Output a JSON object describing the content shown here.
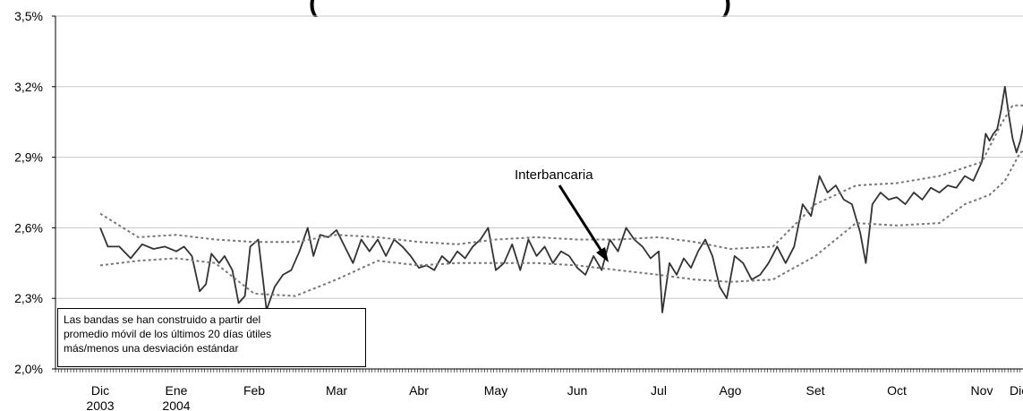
{
  "chart_data": {
    "type": "line",
    "title_fragment": "(",
    "title_fragment_end": ")",
    "y_ticks": [
      "3,5%",
      "3,2%",
      "2,9%",
      "2,6%",
      "2,3%",
      "2,0%"
    ],
    "ylim": [
      2.0,
      3.5
    ],
    "grid": true,
    "x_ticks": [
      {
        "label": "Dic",
        "sub": "2003"
      },
      {
        "label": "Ene",
        "sub": "2004"
      },
      {
        "label": "Feb",
        "sub": ""
      },
      {
        "label": "Mar",
        "sub": ""
      },
      {
        "label": "Abr",
        "sub": ""
      },
      {
        "label": "May",
        "sub": ""
      },
      {
        "label": "Jun",
        "sub": ""
      },
      {
        "label": "Jul",
        "sub": ""
      },
      {
        "label": "Ago",
        "sub": ""
      },
      {
        "label": "Set",
        "sub": ""
      },
      {
        "label": "Oct",
        "sub": ""
      },
      {
        "label": "Nov",
        "sub": ""
      },
      {
        "label": "Dic",
        "sub": ""
      }
    ],
    "annotation": "Interbancaria",
    "note": [
      "Las bandas se han construido a partir del",
      "promedio móvil de los últimos 20 días útiles",
      "más/menos una desviación estándar"
    ],
    "series": [
      {
        "name": "Interbancaria",
        "style": "solid",
        "color": "#333333",
        "points": [
          [
            0,
            2.6
          ],
          [
            0.1,
            2.52
          ],
          [
            0.25,
            2.52
          ],
          [
            0.4,
            2.47
          ],
          [
            0.55,
            2.53
          ],
          [
            0.7,
            2.51
          ],
          [
            0.85,
            2.52
          ],
          [
            1.0,
            2.5
          ],
          [
            1.1,
            2.52
          ],
          [
            1.2,
            2.48
          ],
          [
            1.3,
            2.33
          ],
          [
            1.38,
            2.36
          ],
          [
            1.45,
            2.49
          ],
          [
            1.55,
            2.45
          ],
          [
            1.62,
            2.48
          ],
          [
            1.72,
            2.42
          ],
          [
            1.8,
            2.28
          ],
          [
            1.88,
            2.31
          ],
          [
            1.95,
            2.52
          ],
          [
            2.05,
            2.55
          ],
          [
            2.1,
            2.4
          ],
          [
            2.15,
            2.25
          ],
          [
            2.25,
            2.35
          ],
          [
            2.35,
            2.4
          ],
          [
            2.45,
            2.42
          ],
          [
            2.55,
            2.5
          ],
          [
            2.65,
            2.6
          ],
          [
            2.72,
            2.48
          ],
          [
            2.8,
            2.57
          ],
          [
            2.9,
            2.56
          ],
          [
            3.0,
            2.59
          ],
          [
            3.1,
            2.52
          ],
          [
            3.2,
            2.45
          ],
          [
            3.3,
            2.55
          ],
          [
            3.4,
            2.5
          ],
          [
            3.5,
            2.55
          ],
          [
            3.6,
            2.48
          ],
          [
            3.7,
            2.55
          ],
          [
            3.8,
            2.52
          ],
          [
            3.9,
            2.48
          ],
          [
            4.0,
            2.43
          ],
          [
            4.1,
            2.44
          ],
          [
            4.2,
            2.42
          ],
          [
            4.3,
            2.48
          ],
          [
            4.4,
            2.45
          ],
          [
            4.5,
            2.5
          ],
          [
            4.6,
            2.47
          ],
          [
            4.7,
            2.52
          ],
          [
            4.8,
            2.55
          ],
          [
            4.9,
            2.6
          ],
          [
            5.0,
            2.42
          ],
          [
            5.1,
            2.45
          ],
          [
            5.2,
            2.53
          ],
          [
            5.3,
            2.42
          ],
          [
            5.4,
            2.55
          ],
          [
            5.5,
            2.48
          ],
          [
            5.6,
            2.52
          ],
          [
            5.7,
            2.45
          ],
          [
            5.8,
            2.5
          ],
          [
            5.9,
            2.48
          ],
          [
            6.0,
            2.43
          ],
          [
            6.1,
            2.4
          ],
          [
            6.2,
            2.48
          ],
          [
            6.3,
            2.42
          ],
          [
            6.4,
            2.55
          ],
          [
            6.5,
            2.5
          ],
          [
            6.6,
            2.6
          ],
          [
            6.7,
            2.55
          ],
          [
            6.8,
            2.52
          ],
          [
            6.9,
            2.47
          ],
          [
            7.0,
            2.5
          ],
          [
            7.05,
            2.24
          ],
          [
            7.15,
            2.45
          ],
          [
            7.25,
            2.4
          ],
          [
            7.35,
            2.47
          ],
          [
            7.45,
            2.43
          ],
          [
            7.55,
            2.5
          ],
          [
            7.65,
            2.55
          ],
          [
            7.75,
            2.48
          ],
          [
            7.85,
            2.35
          ],
          [
            7.95,
            2.3
          ],
          [
            8.05,
            2.48
          ],
          [
            8.15,
            2.45
          ],
          [
            8.25,
            2.38
          ],
          [
            8.35,
            2.4
          ],
          [
            8.45,
            2.45
          ],
          [
            8.55,
            2.52
          ],
          [
            8.65,
            2.45
          ],
          [
            8.75,
            2.52
          ],
          [
            8.85,
            2.7
          ],
          [
            8.95,
            2.65
          ],
          [
            9.05,
            2.82
          ],
          [
            9.15,
            2.75
          ],
          [
            9.25,
            2.78
          ],
          [
            9.35,
            2.72
          ],
          [
            9.45,
            2.7
          ],
          [
            9.55,
            2.58
          ],
          [
            9.62,
            2.45
          ],
          [
            9.7,
            2.7
          ],
          [
            9.8,
            2.75
          ],
          [
            9.9,
            2.72
          ],
          [
            10.0,
            2.73
          ],
          [
            10.1,
            2.7
          ],
          [
            10.2,
            2.75
          ],
          [
            10.3,
            2.72
          ],
          [
            10.4,
            2.77
          ],
          [
            10.5,
            2.75
          ],
          [
            10.6,
            2.78
          ],
          [
            10.7,
            2.77
          ],
          [
            10.8,
            2.82
          ],
          [
            10.9,
            2.8
          ],
          [
            11.0,
            2.88
          ],
          [
            11.1,
            3.0
          ],
          [
            11.2,
            2.97
          ],
          [
            11.3,
            3.0
          ],
          [
            11.4,
            3.02
          ],
          [
            11.5,
            3.1
          ],
          [
            11.6,
            3.2
          ],
          [
            11.7,
            3.08
          ],
          [
            11.8,
            2.98
          ],
          [
            11.9,
            2.92
          ],
          [
            12.0,
            2.97
          ],
          [
            12.1,
            3.05
          ],
          [
            12.2,
            2.99
          ],
          [
            12.3,
            2.94
          ],
          [
            12.4,
            3.0
          ],
          [
            12.5,
            3.02
          ],
          [
            12.6,
            3.07
          ],
          [
            12.7,
            3.0
          ],
          [
            12.8,
            2.98
          ]
        ]
      },
      {
        "name": "",
        "style": "dotted",
        "color": "#777777",
        "points": [
          [
            0,
            2.66
          ],
          [
            0.5,
            2.56
          ],
          [
            1.0,
            2.57
          ],
          [
            1.5,
            2.55
          ],
          [
            2.0,
            2.54
          ],
          [
            2.5,
            2.54
          ],
          [
            3.0,
            2.57
          ],
          [
            3.5,
            2.56
          ],
          [
            4.0,
            2.54
          ],
          [
            4.5,
            2.53
          ],
          [
            5.0,
            2.55
          ],
          [
            5.5,
            2.56
          ],
          [
            6.0,
            2.55
          ],
          [
            6.5,
            2.55
          ],
          [
            7.0,
            2.56
          ],
          [
            7.5,
            2.54
          ],
          [
            8.0,
            2.51
          ],
          [
            8.5,
            2.52
          ],
          [
            9.0,
            2.7
          ],
          [
            9.5,
            2.78
          ],
          [
            10.0,
            2.79
          ],
          [
            10.5,
            2.82
          ],
          [
            11.0,
            2.88
          ],
          [
            11.5,
            3.04
          ],
          [
            11.8,
            3.12
          ],
          [
            12.2,
            3.12
          ],
          [
            12.5,
            3.1
          ],
          [
            12.8,
            3.05
          ]
        ]
      },
      {
        "name": "",
        "style": "dotted",
        "color": "#777777",
        "points": [
          [
            0,
            2.44
          ],
          [
            0.5,
            2.46
          ],
          [
            1.0,
            2.47
          ],
          [
            1.5,
            2.45
          ],
          [
            2.0,
            2.32
          ],
          [
            2.5,
            2.31
          ],
          [
            3.0,
            2.38
          ],
          [
            3.5,
            2.46
          ],
          [
            4.0,
            2.44
          ],
          [
            4.5,
            2.45
          ],
          [
            5.0,
            2.45
          ],
          [
            5.5,
            2.45
          ],
          [
            6.0,
            2.44
          ],
          [
            6.5,
            2.42
          ],
          [
            7.0,
            2.4
          ],
          [
            7.5,
            2.38
          ],
          [
            8.0,
            2.37
          ],
          [
            8.5,
            2.38
          ],
          [
            9.0,
            2.48
          ],
          [
            9.5,
            2.62
          ],
          [
            10.0,
            2.61
          ],
          [
            10.5,
            2.62
          ],
          [
            10.8,
            2.7
          ],
          [
            11.2,
            2.74
          ],
          [
            11.6,
            2.8
          ],
          [
            12.0,
            2.92
          ],
          [
            12.4,
            2.95
          ],
          [
            12.8,
            2.95
          ]
        ]
      }
    ]
  }
}
